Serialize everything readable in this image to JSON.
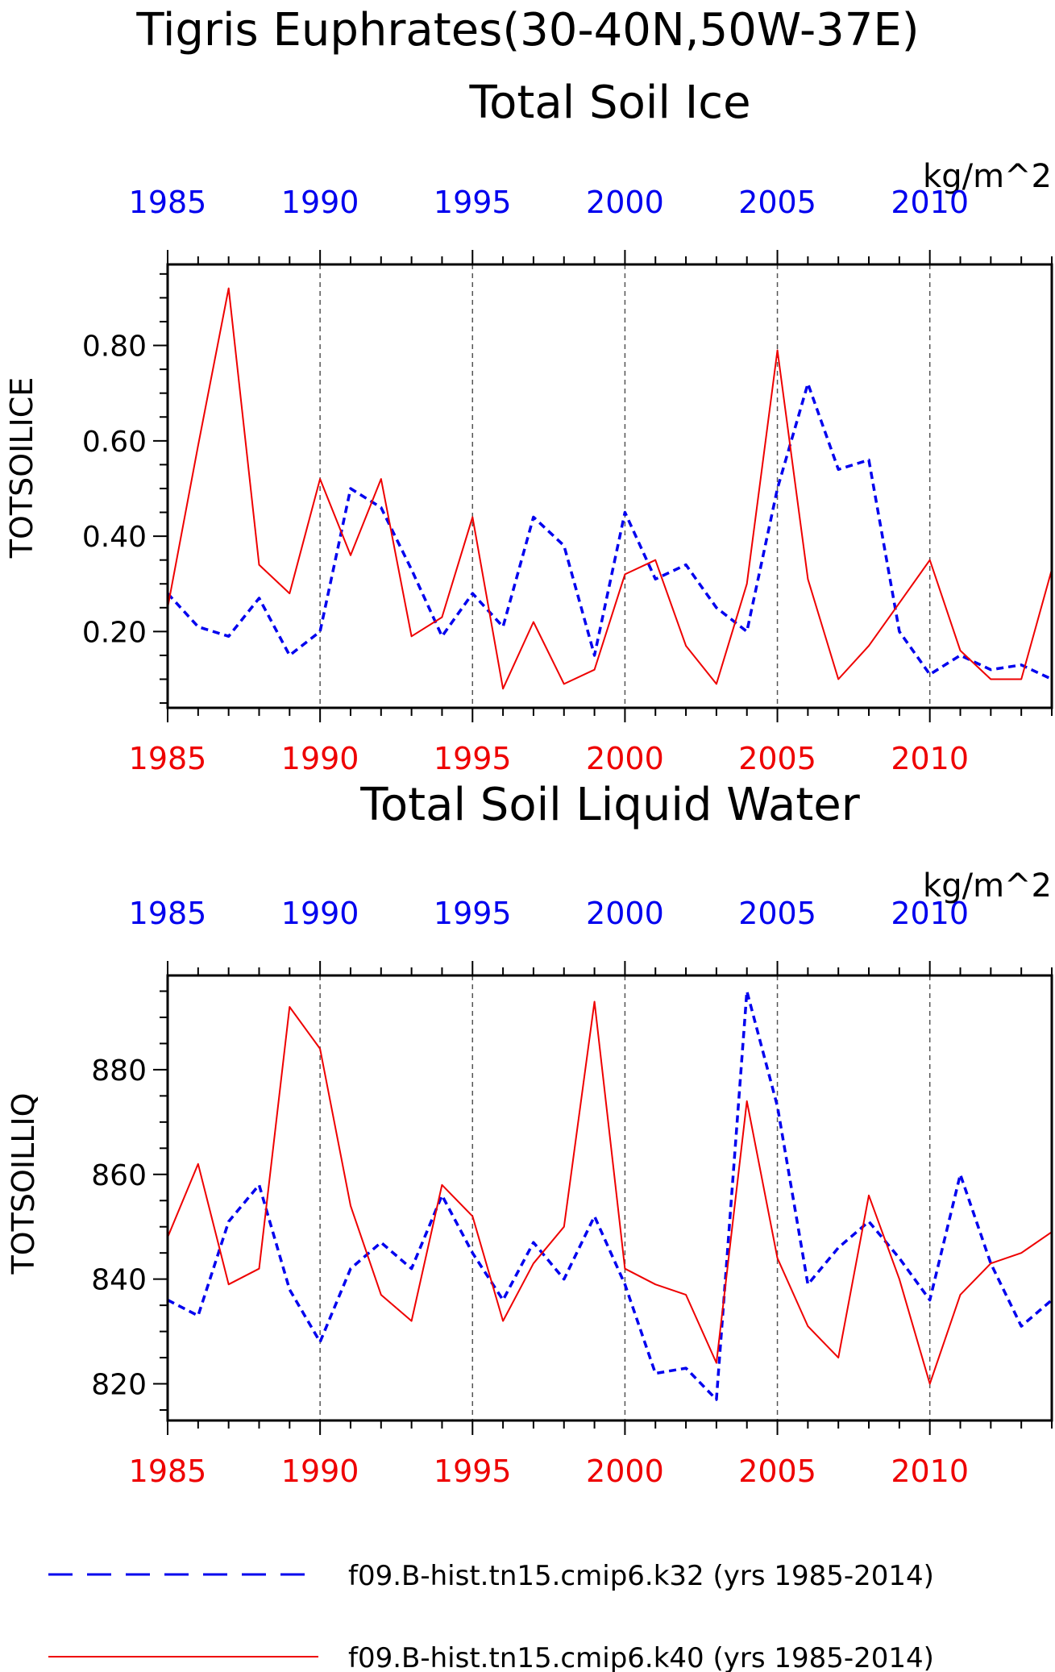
{
  "header": {
    "title": "Tigris Euphrates(30-40N,50W-37E)"
  },
  "colors": {
    "k32": "#0000ee",
    "k40": "#ee0000",
    "axis": "#000000",
    "grid": "#555555"
  },
  "legend": {
    "placement": "bottom",
    "items": [
      {
        "label": "f09.B-hist.tn15.cmip6.k32 (yrs 1985-2014)",
        "color": "#0000ee",
        "style": "dashed"
      },
      {
        "label": "f09.B-hist.tn15.cmip6.k40 (yrs 1985-2014)",
        "color": "#ee0000",
        "style": "solid"
      }
    ]
  },
  "chart_data": [
    {
      "type": "line",
      "title": "Total Soil Ice",
      "units": "kg/m^2",
      "ylabel": "TOTSOILICE",
      "xlabel": "",
      "xlim": [
        1985,
        2014
      ],
      "ylim": [
        0.04,
        0.97
      ],
      "yticks": [
        0.2,
        0.4,
        0.6,
        0.8
      ],
      "ytick_labels": [
        "0.20",
        "0.40",
        "0.60",
        "0.80"
      ],
      "xticks": [
        1985,
        1990,
        1995,
        2000,
        2005,
        2010
      ],
      "xtick_labels": [
        "1985",
        "1990",
        "1995",
        "2000",
        "2005",
        "2010"
      ],
      "grid_x": [
        1990,
        1995,
        2000,
        2005,
        2010
      ],
      "x": [
        1985,
        1986,
        1987,
        1988,
        1989,
        1990,
        1991,
        1992,
        1993,
        1994,
        1995,
        1996,
        1997,
        1998,
        1999,
        2000,
        2001,
        2002,
        2003,
        2004,
        2005,
        2006,
        2007,
        2008,
        2009,
        2010,
        2011,
        2012,
        2013,
        2014
      ],
      "series": [
        {
          "key": "k32",
          "style": "dashed",
          "values": [
            0.28,
            0.21,
            0.19,
            0.27,
            0.15,
            0.2,
            0.5,
            0.46,
            0.33,
            0.19,
            0.28,
            0.21,
            0.44,
            0.38,
            0.15,
            0.45,
            0.31,
            0.34,
            0.25,
            0.2,
            0.5,
            0.72,
            0.54,
            0.56,
            0.2,
            0.11,
            0.15,
            0.12,
            0.13,
            0.1
          ]
        },
        {
          "key": "k40",
          "style": "solid",
          "values": [
            0.25,
            0.59,
            0.92,
            0.34,
            0.28,
            0.52,
            0.36,
            0.52,
            0.19,
            0.23,
            0.44,
            0.08,
            0.22,
            0.09,
            0.12,
            0.32,
            0.35,
            0.17,
            0.09,
            0.3,
            0.79,
            0.31,
            0.1,
            0.17,
            0.26,
            0.35,
            0.16,
            0.1,
            0.1,
            0.33
          ]
        }
      ]
    },
    {
      "type": "line",
      "title": "Total Soil Liquid Water",
      "units": "kg/m^2",
      "ylabel": "TOTSOILLIQ",
      "xlabel": "",
      "xlim": [
        1985,
        2014
      ],
      "ylim": [
        813,
        898
      ],
      "yticks": [
        820,
        840,
        860,
        880
      ],
      "ytick_labels": [
        "820",
        "840",
        "860",
        "880"
      ],
      "xticks": [
        1985,
        1990,
        1995,
        2000,
        2005,
        2010
      ],
      "xtick_labels": [
        "1985",
        "1990",
        "1995",
        "2000",
        "2005",
        "2010"
      ],
      "grid_x": [
        1990,
        1995,
        2000,
        2005,
        2010
      ],
      "x": [
        1985,
        1986,
        1987,
        1988,
        1989,
        1990,
        1991,
        1992,
        1993,
        1994,
        1995,
        1996,
        1997,
        1998,
        1999,
        2000,
        2001,
        2002,
        2003,
        2004,
        2005,
        2006,
        2007,
        2008,
        2009,
        2010,
        2011,
        2012,
        2013,
        2014
      ],
      "series": [
        {
          "key": "k32",
          "style": "dashed",
          "values": [
            836,
            833,
            851,
            858,
            838,
            828,
            842,
            847,
            842,
            856,
            845,
            836,
            847,
            840,
            852,
            839,
            822,
            823,
            817,
            895,
            873,
            839,
            846,
            851,
            844,
            836,
            860,
            843,
            831,
            836
          ]
        },
        {
          "key": "k40",
          "style": "solid",
          "values": [
            848,
            862,
            839,
            842,
            892,
            884,
            854,
            837,
            832,
            858,
            852,
            832,
            843,
            850,
            893,
            842,
            839,
            837,
            824,
            874,
            844,
            831,
            825,
            856,
            840,
            820,
            837,
            843,
            845,
            849
          ]
        }
      ]
    }
  ]
}
